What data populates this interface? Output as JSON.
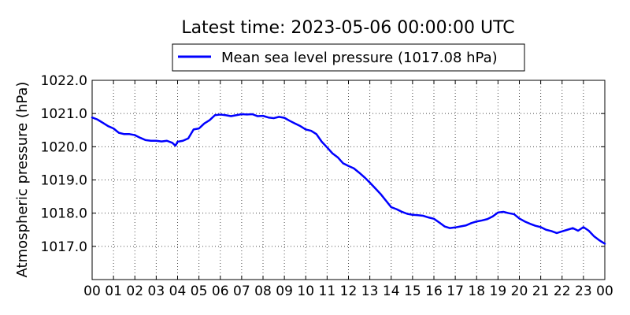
{
  "chart_data": {
    "type": "line",
    "title": "Latest time: 2023-05-06 00:00:00 UTC",
    "xlabel": "",
    "ylabel": "Atmospheric pressure (hPa)",
    "x_unit": "hour (UTC)",
    "xlim": [
      0,
      24
    ],
    "ylim": [
      1016.0,
      1022.0
    ],
    "x_tick_values": [
      0,
      1,
      2,
      3,
      4,
      5,
      6,
      7,
      8,
      9,
      10,
      11,
      12,
      13,
      14,
      15,
      16,
      17,
      18,
      19,
      20,
      21,
      22,
      23,
      24
    ],
    "x_tick_labels": [
      "00",
      "01",
      "02",
      "03",
      "04",
      "05",
      "06",
      "07",
      "08",
      "09",
      "10",
      "11",
      "12",
      "13",
      "14",
      "15",
      "16",
      "17",
      "18",
      "19",
      "20",
      "21",
      "22",
      "23",
      "00"
    ],
    "y_tick_values": [
      1017.0,
      1018.0,
      1019.0,
      1020.0,
      1021.0,
      1022.0
    ],
    "y_tick_labels": [
      "1017.0",
      "1018.0",
      "1019.0",
      "1020.0",
      "1021.0",
      "1022.0"
    ],
    "grid": true,
    "legend_position": "top-center",
    "series": [
      {
        "name": "Mean sea level pressure (1017.08 hPa)",
        "color": "#0000ff",
        "x": [
          0.0,
          0.25,
          0.5,
          0.75,
          1.0,
          1.25,
          1.5,
          1.75,
          2.0,
          2.25,
          2.5,
          2.75,
          3.0,
          3.25,
          3.5,
          3.75,
          3.9,
          4.0,
          4.25,
          4.5,
          4.75,
          5.0,
          5.25,
          5.5,
          5.75,
          6.0,
          6.25,
          6.5,
          6.75,
          7.0,
          7.25,
          7.5,
          7.75,
          8.0,
          8.25,
          8.5,
          8.75,
          9.0,
          9.25,
          9.5,
          9.75,
          10.0,
          10.25,
          10.5,
          10.75,
          11.0,
          11.25,
          11.5,
          11.75,
          12.0,
          12.25,
          12.5,
          12.75,
          13.0,
          13.25,
          13.5,
          13.75,
          14.0,
          14.25,
          14.5,
          14.75,
          15.0,
          15.25,
          15.5,
          15.75,
          16.0,
          16.25,
          16.5,
          16.75,
          17.0,
          17.25,
          17.5,
          17.75,
          18.0,
          18.25,
          18.5,
          18.75,
          19.0,
          19.25,
          19.5,
          19.75,
          20.0,
          20.25,
          20.5,
          20.75,
          21.0,
          21.25,
          21.5,
          21.75,
          22.0,
          22.25,
          22.5,
          22.75,
          23.0,
          23.25,
          23.5,
          23.75,
          24.0
        ],
        "y": [
          1020.88,
          1020.82,
          1020.72,
          1020.62,
          1020.55,
          1020.42,
          1020.38,
          1020.38,
          1020.35,
          1020.27,
          1020.2,
          1020.18,
          1020.18,
          1020.16,
          1020.18,
          1020.12,
          1020.03,
          1020.15,
          1020.18,
          1020.25,
          1020.52,
          1020.55,
          1020.7,
          1020.8,
          1020.95,
          1020.97,
          1020.95,
          1020.92,
          1020.95,
          1020.98,
          1020.97,
          1020.98,
          1020.92,
          1020.93,
          1020.88,
          1020.86,
          1020.9,
          1020.87,
          1020.78,
          1020.7,
          1020.62,
          1020.52,
          1020.48,
          1020.38,
          1020.15,
          1019.98,
          1019.8,
          1019.68,
          1019.5,
          1019.42,
          1019.35,
          1019.22,
          1019.08,
          1018.92,
          1018.75,
          1018.58,
          1018.38,
          1018.18,
          1018.12,
          1018.04,
          1017.98,
          1017.95,
          1017.94,
          1017.92,
          1017.87,
          1017.83,
          1017.72,
          1017.6,
          1017.55,
          1017.57,
          1017.6,
          1017.63,
          1017.7,
          1017.75,
          1017.78,
          1017.82,
          1017.9,
          1018.02,
          1018.04,
          1018.0,
          1017.97,
          1017.84,
          1017.75,
          1017.68,
          1017.62,
          1017.58,
          1017.5,
          1017.46,
          1017.4,
          1017.45,
          1017.5,
          1017.55,
          1017.47,
          1017.58,
          1017.47,
          1017.3,
          1017.18,
          1017.08
        ]
      }
    ]
  }
}
